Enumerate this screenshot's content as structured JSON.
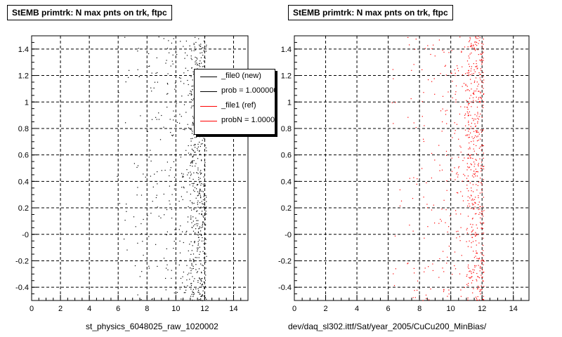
{
  "panels": [
    {
      "title": "StEMB primtrk: N max pnts on trk, ftpc",
      "footer": "st_physics_6048025_raw_1020002",
      "marker_color": "#000000"
    },
    {
      "title": "StEMB primtrk: N max pnts on trk, ftpc",
      "footer": "dev/daq_sl302.ittf/Sat/year_2005/CuCu200_MinBias/",
      "marker_color": "#ff0000"
    }
  ],
  "legend": {
    "entries": [
      {
        "label": "_file0 (new)",
        "color": "#000000"
      },
      {
        "label": "prob = 1.000000",
        "color": "#000000"
      },
      {
        "label": "_file1 (ref)",
        "color": "#ff0000"
      },
      {
        "label": "probN = 1.000000",
        "color": "#ff0000"
      }
    ]
  },
  "chart_data": [
    {
      "type": "scatter",
      "title": "StEMB primtrk: N max pnts on trk, ftpc",
      "xlabel": "st_physics_6048025_raw_1020002",
      "ylabel": "",
      "xlim": [
        0,
        15
      ],
      "ylim": [
        -0.5,
        1.5
      ],
      "x_ticks": [
        "0",
        "2",
        "4",
        "6",
        "8",
        "10",
        "12",
        "14"
      ],
      "y_ticks": [
        "-0.4",
        "-0.2",
        "-0",
        "0.2",
        "0.4",
        "0.6",
        "0.8",
        "1",
        "1.2",
        "1.4"
      ],
      "grid": true,
      "series": [
        {
          "name": "_file0 (new)",
          "color": "#000000",
          "columns": [
            {
              "x_range": [
                5.8,
                6.8
              ],
              "y_range": [
                -0.5,
                1.5
              ],
              "density": 14
            },
            {
              "x_range": [
                6.9,
                7.9
              ],
              "y_range": [
                -0.5,
                1.5
              ],
              "density": 28
            },
            {
              "x_range": [
                8.0,
                9.0
              ],
              "y_range": [
                -0.5,
                1.5
              ],
              "density": 45
            },
            {
              "x_range": [
                9.1,
                10.1
              ],
              "y_range": [
                -0.5,
                1.5
              ],
              "density": 70
            },
            {
              "x_range": [
                10.2,
                11.0
              ],
              "y_range": [
                -0.5,
                1.5
              ],
              "density": 90
            },
            {
              "x_range": [
                11.0,
                12.1
              ],
              "y_range": [
                -0.5,
                1.5
              ],
              "density": 520
            }
          ]
        }
      ]
    },
    {
      "type": "scatter",
      "title": "StEMB primtrk: N max pnts on trk, ftpc",
      "xlabel": "dev/daq_sl302.ittf/Sat/year_2005/CuCu200_MinBias/",
      "ylabel": "",
      "xlim": [
        0,
        15
      ],
      "ylim": [
        -0.5,
        1.5
      ],
      "x_ticks": [
        "0",
        "2",
        "4",
        "6",
        "8",
        "10",
        "12",
        "14"
      ],
      "y_ticks": [
        "-0.4",
        "-0.2",
        "-0",
        "0.2",
        "0.4",
        "0.6",
        "0.8",
        "1",
        "1.2",
        "1.4"
      ],
      "grid": true,
      "series": [
        {
          "name": "_file1 (ref)",
          "color": "#ff0000",
          "columns": [
            {
              "x_range": [
                6.2,
                6.9
              ],
              "y_range": [
                -0.5,
                1.5
              ],
              "density": 12
            },
            {
              "x_range": [
                7.1,
                7.9
              ],
              "y_range": [
                -0.5,
                1.5
              ],
              "density": 26
            },
            {
              "x_range": [
                8.1,
                9.0
              ],
              "y_range": [
                -0.5,
                1.5
              ],
              "density": 40
            },
            {
              "x_range": [
                9.2,
                10.1
              ],
              "y_range": [
                -0.5,
                1.5
              ],
              "density": 60
            },
            {
              "x_range": [
                10.2,
                11.0
              ],
              "y_range": [
                -0.5,
                1.5
              ],
              "density": 80
            },
            {
              "x_range": [
                11.0,
                12.1
              ],
              "y_range": [
                -0.5,
                1.5
              ],
              "density": 480
            }
          ]
        }
      ]
    }
  ]
}
